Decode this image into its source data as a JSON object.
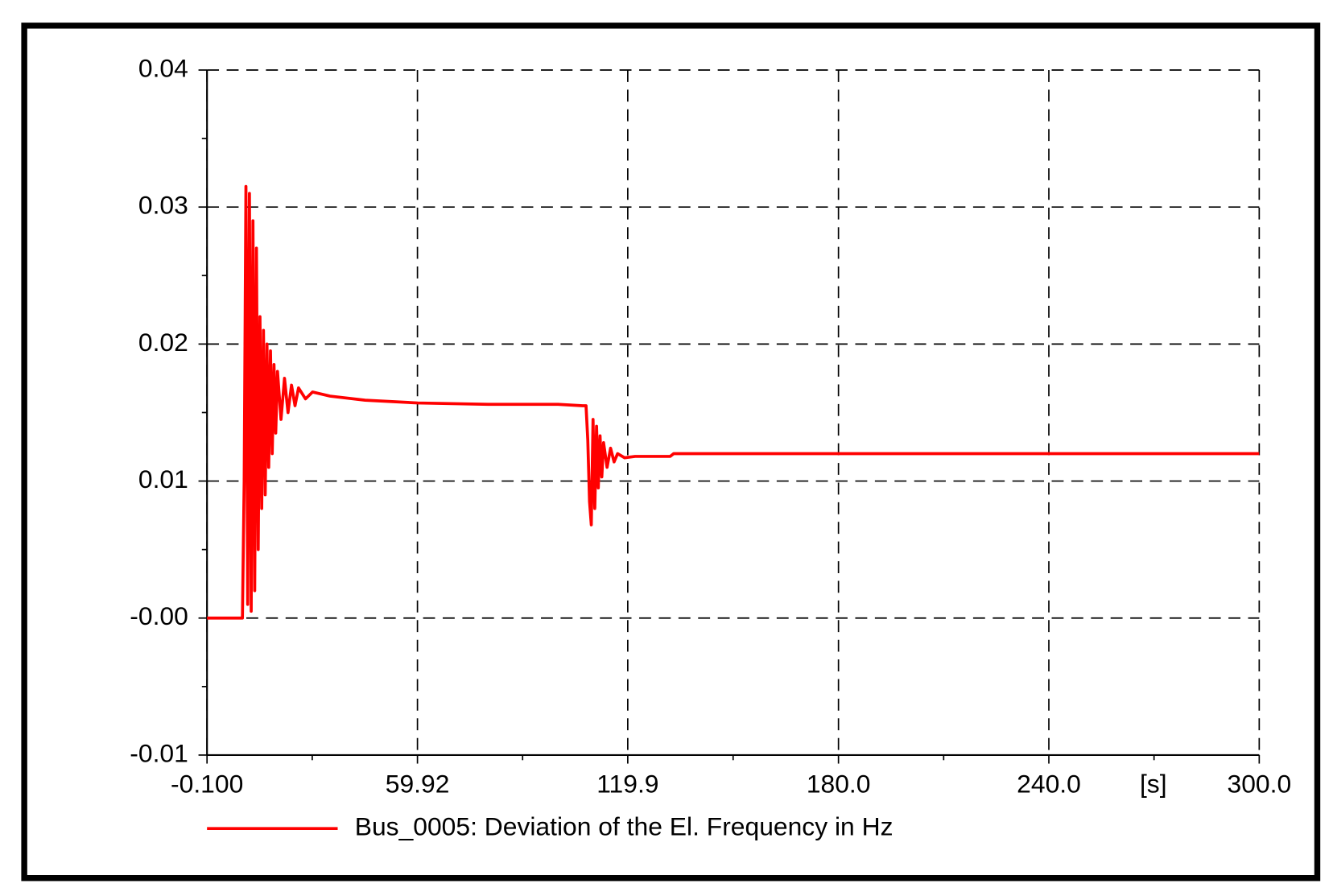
{
  "chart_data": {
    "type": "line",
    "xlabel": "[s]",
    "xlim": [
      -0.1,
      300
    ],
    "ylim": [
      -0.01,
      0.04
    ],
    "xticks": [
      {
        "value": -0.1,
        "label": "-0.100"
      },
      59.92,
      119.9,
      {
        "value": 180,
        "label": "180.0"
      },
      {
        "value": 240,
        "label": "240.0"
      },
      {
        "value": 300,
        "label": "300.0"
      }
    ],
    "yticks": [
      -0.01,
      {
        "value": 0,
        "label": "-0.00"
      },
      0.01,
      0.02,
      0.03,
      0.04
    ],
    "grid": true,
    "legend": "bottom",
    "series": [
      {
        "name": "Bus_0005: Deviation of the El. Frequency in Hz",
        "color": "#ff0000",
        "x": [
          -0.1,
          10,
          10.5,
          11,
          11.5,
          12,
          12.5,
          13,
          13.5,
          14,
          14.5,
          15,
          15.5,
          16,
          16.5,
          17,
          17.5,
          18,
          18.5,
          19,
          19.5,
          20,
          21,
          22,
          23,
          24,
          25,
          26,
          28,
          30,
          35,
          45,
          60,
          80,
          100,
          107,
          108,
          108.5,
          109,
          109.5,
          110,
          110.5,
          111,
          111.5,
          112,
          112.5,
          113,
          114,
          115,
          116,
          117,
          119,
          122,
          132,
          133,
          300
        ],
        "values": [
          0,
          0,
          0.01,
          0.0315,
          0.001,
          0.031,
          0.0005,
          0.029,
          0.002,
          0.027,
          0.005,
          0.022,
          0.008,
          0.021,
          0.009,
          0.02,
          0.011,
          0.0195,
          0.012,
          0.0185,
          0.0135,
          0.018,
          0.0145,
          0.0175,
          0.015,
          0.017,
          0.0155,
          0.0168,
          0.016,
          0.0165,
          0.0162,
          0.0159,
          0.0157,
          0.0156,
          0.0156,
          0.0155,
          0.0155,
          0.013,
          0.0085,
          0.0068,
          0.0145,
          0.008,
          0.014,
          0.0095,
          0.0133,
          0.0103,
          0.0128,
          0.011,
          0.0124,
          0.0114,
          0.012,
          0.0117,
          0.0118,
          0.0118,
          0.012,
          0.012
        ]
      }
    ]
  }
}
